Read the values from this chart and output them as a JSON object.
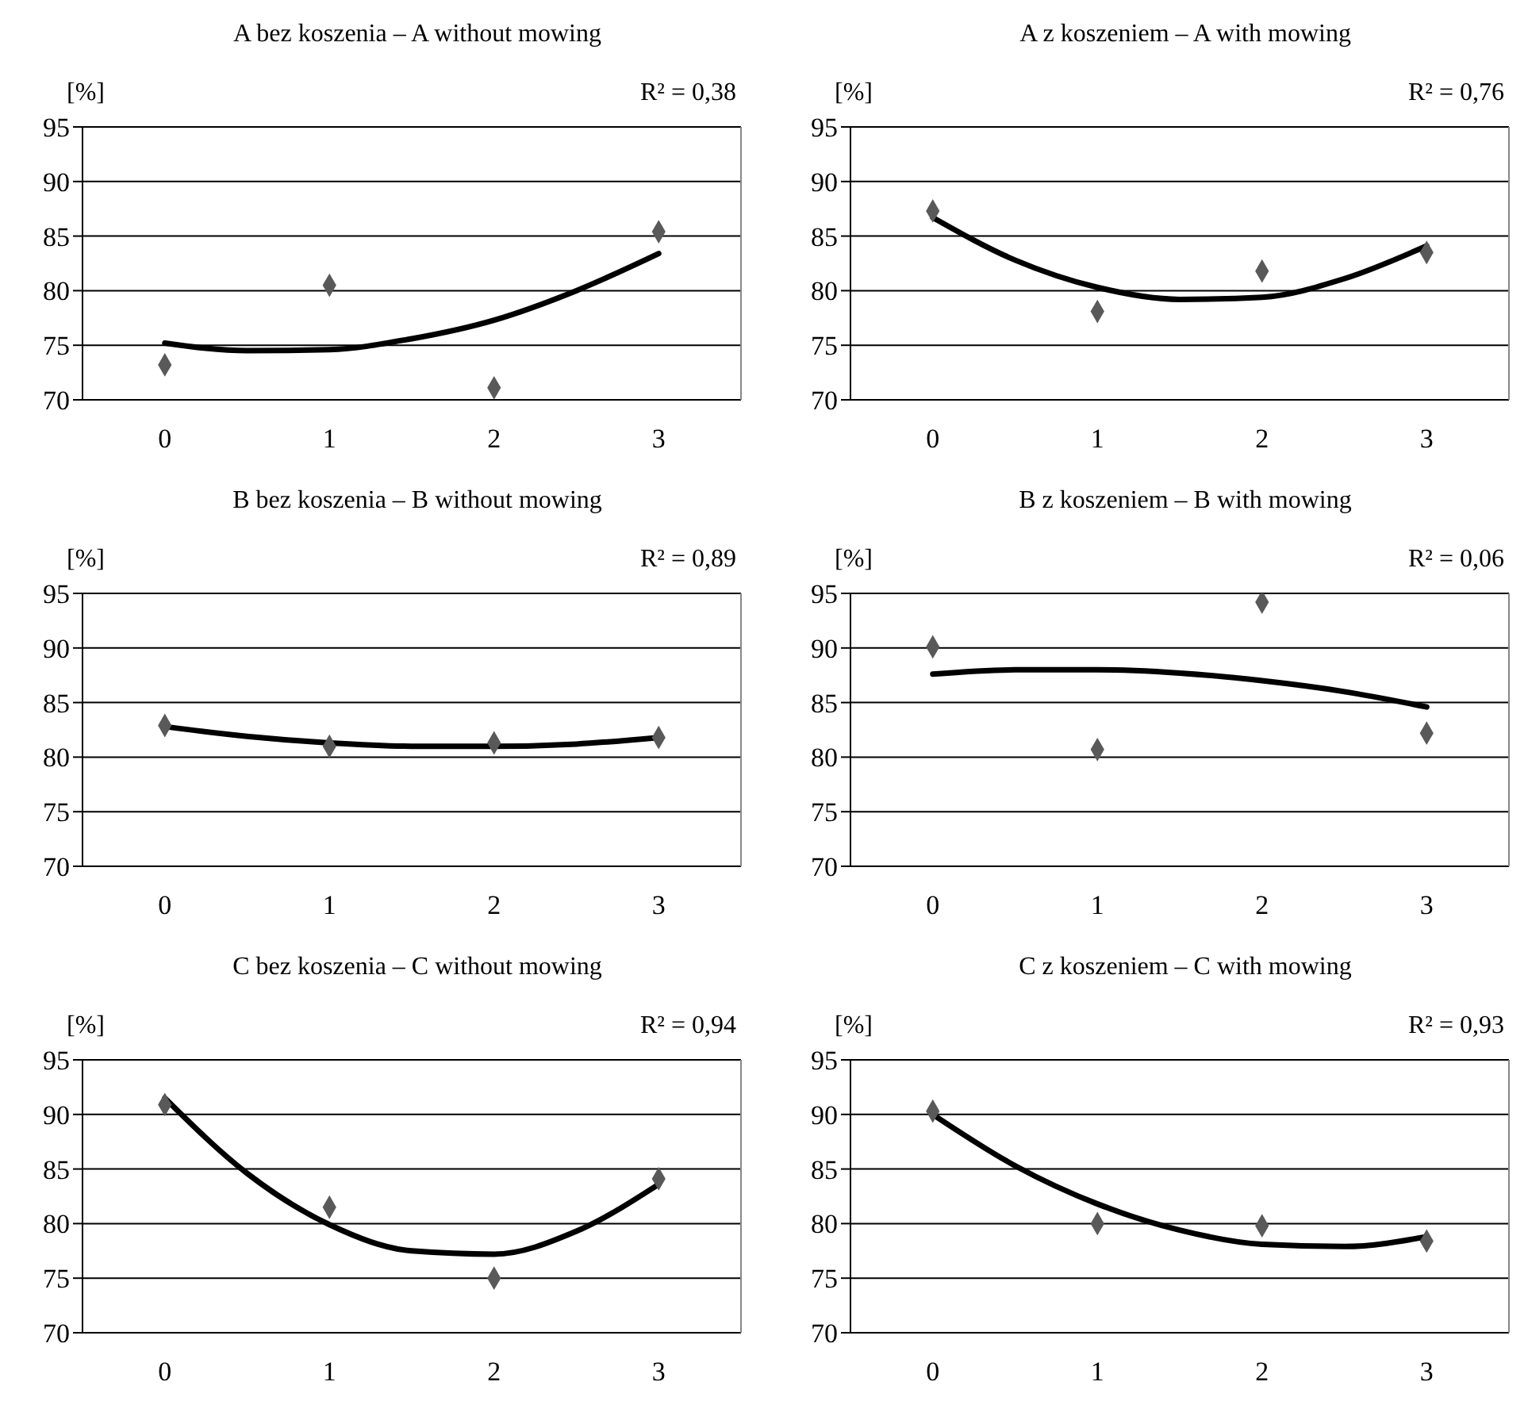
{
  "chart_data": [
    {
      "type": "scatter",
      "title": "A bez koszenia – A without mowing",
      "ylabel": "[%]",
      "annotations": [
        "R² = 0,38"
      ],
      "x": [
        0,
        1,
        2,
        3
      ],
      "xlim": [
        -0.5,
        3.5
      ],
      "xticks": [
        0,
        1,
        2,
        3
      ],
      "ylim": [
        70,
        95
      ],
      "yticks": [
        70,
        75,
        80,
        85,
        90,
        95
      ],
      "grid": "y",
      "legend": false,
      "series": [
        {
          "color": "#595959",
          "marker": "diamond",
          "values": [
            73.2,
            80.5,
            71.1,
            85.4
          ]
        },
        {
          "type": "line",
          "color": "#000000",
          "x": [
            0,
            0.5,
            1,
            1.5,
            2,
            2.5,
            3
          ],
          "values": [
            75.2,
            74.5,
            74.6,
            75.6,
            77.3,
            80.0,
            83.4
          ]
        }
      ]
    },
    {
      "type": "scatter",
      "title": "A z koszeniem – A with mowing",
      "ylabel": "[%]",
      "annotations": [
        "R² = 0,76"
      ],
      "x": [
        0,
        1,
        2,
        3
      ],
      "xlim": [
        -0.5,
        3.5
      ],
      "xticks": [
        0,
        1,
        2,
        3
      ],
      "ylim": [
        70,
        95
      ],
      "yticks": [
        70,
        75,
        80,
        85,
        90,
        95
      ],
      "grid": "y",
      "legend": false,
      "series": [
        {
          "color": "#595959",
          "marker": "diamond",
          "values": [
            87.3,
            78.1,
            81.8,
            83.5
          ]
        },
        {
          "type": "line",
          "color": "#000000",
          "x": [
            0,
            0.5,
            1,
            1.5,
            2,
            2.5,
            3
          ],
          "values": [
            86.7,
            82.8,
            80.3,
            79.2,
            79.4,
            81.1,
            84.1
          ]
        }
      ]
    },
    {
      "type": "scatter",
      "title": "B bez koszenia – B without mowing",
      "ylabel": "[%]",
      "annotations": [
        "R² = 0,89"
      ],
      "x": [
        0,
        1,
        2,
        3
      ],
      "xlim": [
        -0.5,
        3.5
      ],
      "xticks": [
        0,
        1,
        2,
        3
      ],
      "ylim": [
        70,
        95
      ],
      "yticks": [
        70,
        75,
        80,
        85,
        90,
        95
      ],
      "grid": "y",
      "legend": false,
      "series": [
        {
          "color": "#595959",
          "marker": "diamond",
          "values": [
            82.9,
            81.0,
            81.3,
            81.8
          ]
        },
        {
          "type": "line",
          "color": "#000000",
          "x": [
            0,
            0.5,
            1,
            1.5,
            2,
            2.5,
            3
          ],
          "values": [
            82.8,
            81.9,
            81.3,
            81.0,
            81.0,
            81.2,
            81.8
          ]
        }
      ]
    },
    {
      "type": "scatter",
      "title": "B z koszeniem – B with mowing",
      "ylabel": "[%]",
      "annotations": [
        "R² = 0,06"
      ],
      "x": [
        0,
        1,
        2,
        3
      ],
      "xlim": [
        -0.5,
        3.5
      ],
      "xticks": [
        0,
        1,
        2,
        3
      ],
      "ylim": [
        70,
        95
      ],
      "yticks": [
        70,
        75,
        80,
        85,
        90,
        95
      ],
      "grid": "y",
      "legend": false,
      "series": [
        {
          "color": "#595959",
          "marker": "diamond",
          "values": [
            90.1,
            80.7,
            94.2,
            82.2
          ]
        },
        {
          "type": "line",
          "color": "#000000",
          "x": [
            0,
            0.5,
            1,
            1.5,
            2,
            2.5,
            3
          ],
          "values": [
            87.6,
            88.0,
            88.0,
            87.7,
            87.0,
            86.0,
            84.6
          ]
        }
      ]
    },
    {
      "type": "scatter",
      "title": "C bez koszenia – C without mowing",
      "ylabel": "[%]",
      "annotations": [
        "R² = 0,94"
      ],
      "x": [
        0,
        1,
        2,
        3
      ],
      "xlim": [
        -0.5,
        3.5
      ],
      "xticks": [
        0,
        1,
        2,
        3
      ],
      "ylim": [
        70,
        95
      ],
      "yticks": [
        70,
        75,
        80,
        85,
        90,
        95
      ],
      "grid": "y",
      "legend": false,
      "series": [
        {
          "color": "#595959",
          "marker": "diamond",
          "values": [
            90.9,
            81.5,
            75.0,
            84.1
          ]
        },
        {
          "type": "line",
          "color": "#000000",
          "x": [
            0,
            0.5,
            1,
            1.5,
            2,
            2.5,
            3
          ],
          "values": [
            91.5,
            84.6,
            79.9,
            77.5,
            77.2,
            79.3,
            83.6
          ]
        }
      ]
    },
    {
      "type": "scatter",
      "title": "C z koszeniem – C with mowing",
      "ylabel": "[%]",
      "annotations": [
        "R² = 0,93"
      ],
      "x": [
        0,
        1,
        2,
        3
      ],
      "xlim": [
        -0.5,
        3.5
      ],
      "xticks": [
        0,
        1,
        2,
        3
      ],
      "ylim": [
        70,
        95
      ],
      "yticks": [
        70,
        75,
        80,
        85,
        90,
        95
      ],
      "grid": "y",
      "legend": false,
      "series": [
        {
          "color": "#595959",
          "marker": "diamond",
          "values": [
            90.3,
            80.0,
            79.8,
            78.4
          ]
        },
        {
          "type": "line",
          "color": "#000000",
          "x": [
            0,
            0.5,
            1,
            1.5,
            2,
            2.5,
            3
          ],
          "values": [
            90.0,
            85.3,
            81.8,
            79.4,
            78.1,
            77.9,
            78.8
          ]
        }
      ]
    }
  ]
}
